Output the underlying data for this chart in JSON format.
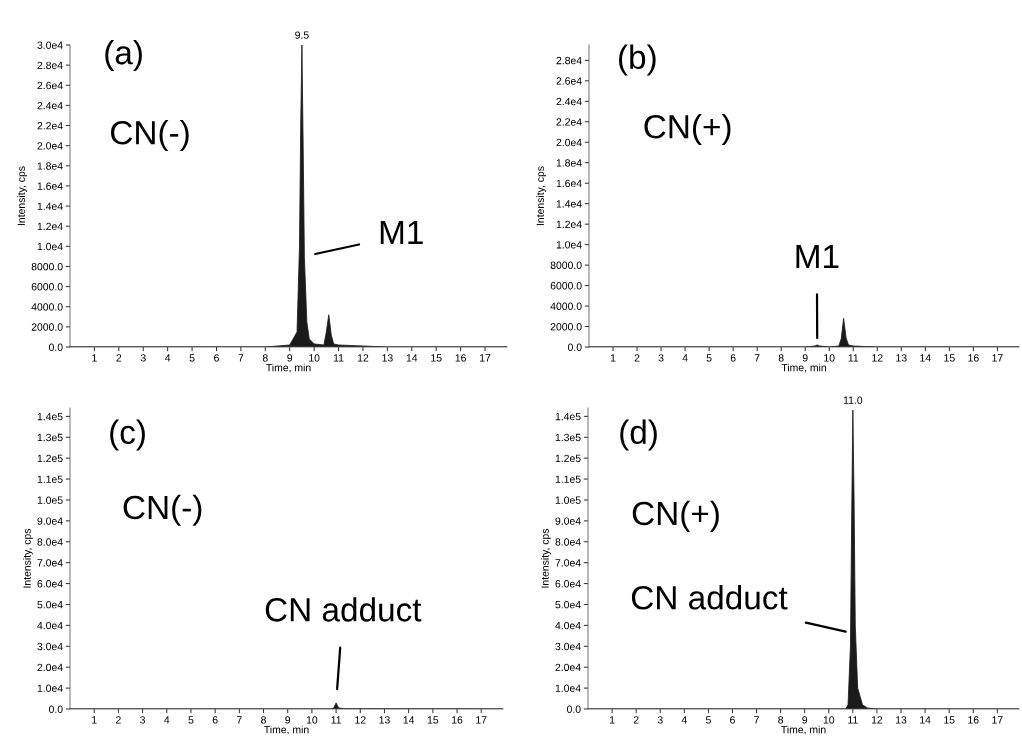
{
  "chart_data": [
    {
      "type": "area",
      "xlabel": "Time, min",
      "ylabel": "Intensity, cps",
      "x": [
        0,
        8.0,
        8.5,
        9.0,
        9.3,
        9.4,
        9.45,
        9.5,
        9.55,
        9.6,
        9.7,
        9.8,
        10.0,
        10.4,
        10.5,
        10.6,
        10.7,
        10.8,
        11.0,
        12.0,
        13.0,
        17.9
      ],
      "series": [
        {
          "color": "#1a1a1a",
          "values": [
            0,
            0,
            100,
            200,
            1500,
            10000,
            22000,
            30000,
            20000,
            9000,
            2500,
            800,
            300,
            200,
            1500,
            3200,
            1200,
            300,
            200,
            100,
            0,
            0
          ]
        }
      ],
      "xlim": [
        0,
        17.9
      ],
      "xticks": [
        1,
        2,
        3,
        4,
        5,
        6,
        7,
        8,
        9,
        10,
        11,
        12,
        13,
        14,
        15,
        16,
        17
      ],
      "ylim": [
        0,
        30000
      ],
      "yticks": [
        {
          "value": 0,
          "label": "0.0"
        },
        {
          "value": 2000,
          "label": "2000.0"
        },
        {
          "value": 4000,
          "label": "4000.0"
        },
        {
          "value": 6000,
          "label": "6000.0"
        },
        {
          "value": 8000,
          "label": "8000.0"
        },
        {
          "value": 10000,
          "label": "1.0e4"
        },
        {
          "value": 12000,
          "label": "1.2e4"
        },
        {
          "value": 14000,
          "label": "1.4e4"
        },
        {
          "value": 16000,
          "label": "1.6e4"
        },
        {
          "value": 18000,
          "label": "1.8e4"
        },
        {
          "value": 20000,
          "label": "2.0e4"
        },
        {
          "value": 22000,
          "label": "2.2e4"
        },
        {
          "value": 24000,
          "label": "2.4e4"
        },
        {
          "value": 26000,
          "label": "2.6e4"
        },
        {
          "value": 28000,
          "label": "2.8e4"
        },
        {
          "value": 30000,
          "label": "3.0e4"
        }
      ],
      "annotations": [
        "(a)",
        "CN(-)",
        {
          "text": "M1",
          "x": 9.6,
          "y": 9000
        },
        {
          "text": "9.5",
          "x": 9.5,
          "y": 30000
        }
      ]
    },
    {
      "type": "area",
      "xlabel": "Time, min",
      "ylabel": "Intensity, cps",
      "x": [
        0,
        8.0,
        9.0,
        9.4,
        9.5,
        9.6,
        10.0,
        10.4,
        10.5,
        10.6,
        10.7,
        10.8,
        11.0,
        12.0,
        13.0,
        17.9
      ],
      "series": [
        {
          "color": "#1a1a1a",
          "values": [
            0,
            0,
            0,
            100,
            200,
            100,
            0,
            100,
            800,
            2800,
            900,
            200,
            100,
            0,
            0,
            0
          ]
        }
      ],
      "xlim": [
        0,
        17.9
      ],
      "xticks": [
        1,
        2,
        3,
        4,
        5,
        6,
        7,
        8,
        9,
        10,
        11,
        12,
        13,
        14,
        15,
        16,
        17
      ],
      "ylim": [
        0,
        29500
      ],
      "yticks": [
        {
          "value": 0,
          "label": "0.0"
        },
        {
          "value": 2000,
          "label": "2000.0"
        },
        {
          "value": 4000,
          "label": "4000.0"
        },
        {
          "value": 6000,
          "label": "6000.0"
        },
        {
          "value": 8000,
          "label": "8000.0"
        },
        {
          "value": 10000,
          "label": "1.0e4"
        },
        {
          "value": 12000,
          "label": "1.2e4"
        },
        {
          "value": 14000,
          "label": "1.4e4"
        },
        {
          "value": 16000,
          "label": "1.6e4"
        },
        {
          "value": 18000,
          "label": "1.8e4"
        },
        {
          "value": 20000,
          "label": "2.0e4"
        },
        {
          "value": 22000,
          "label": "2.2e4"
        },
        {
          "value": 24000,
          "label": "2.4e4"
        },
        {
          "value": 26000,
          "label": "2.6e4"
        },
        {
          "value": 28000,
          "label": "2.8e4"
        }
      ],
      "annotations": [
        "(b)",
        "CN(+)",
        {
          "text": "M1",
          "x": 9.5,
          "y": 200
        }
      ]
    },
    {
      "type": "area",
      "xlabel": "Time, min",
      "ylabel": "Intensity, cps",
      "x": [
        0,
        10.8,
        10.9,
        11.0,
        11.1,
        11.3,
        17.9
      ],
      "series": [
        {
          "color": "#1a1a1a",
          "values": [
            0,
            0,
            500,
            2900,
            600,
            100,
            0
          ]
        }
      ],
      "xlim": [
        0,
        17.9
      ],
      "xticks": [
        1,
        2,
        3,
        4,
        5,
        6,
        7,
        8,
        9,
        10,
        11,
        12,
        13,
        14,
        15,
        16,
        17
      ],
      "ylim": [
        0,
        144000
      ],
      "yticks": [
        {
          "value": 0,
          "label": "0.0"
        },
        {
          "value": 10000,
          "label": "1.0e4"
        },
        {
          "value": 20000,
          "label": "2.0e4"
        },
        {
          "value": 30000,
          "label": "3.0e4"
        },
        {
          "value": 40000,
          "label": "4.0e4"
        },
        {
          "value": 50000,
          "label": "5.0e4"
        },
        {
          "value": 60000,
          "label": "6.0e4"
        },
        {
          "value": 70000,
          "label": "7.0e4"
        },
        {
          "value": 80000,
          "label": "8.0e4"
        },
        {
          "value": 90000,
          "label": "9.0e4"
        },
        {
          "value": 100000,
          "label": "1.0e5"
        },
        {
          "value": 110000,
          "label": "1.1e5"
        },
        {
          "value": 120000,
          "label": "1.2e5"
        },
        {
          "value": 130000,
          "label": "1.3e5"
        },
        {
          "value": 140000,
          "label": "1.4e5"
        }
      ],
      "annotations": [
        "(c)",
        "CN(-)",
        {
          "text": "CN adduct",
          "x": 11.0,
          "y": 2900
        }
      ]
    },
    {
      "type": "area",
      "xlabel": "Time, min",
      "ylabel": "Intensity, cps",
      "x": [
        0,
        10.7,
        10.8,
        10.9,
        10.95,
        11.0,
        11.05,
        11.1,
        11.2,
        11.4,
        11.6,
        12.0,
        17.9
      ],
      "series": [
        {
          "color": "#1a1a1a",
          "values": [
            0,
            0,
            2000,
            30000,
            90000,
            143000,
            100000,
            40000,
            10000,
            2000,
            500,
            0,
            0
          ]
        }
      ],
      "xlim": [
        0,
        17.9
      ],
      "xticks": [
        1,
        2,
        3,
        4,
        5,
        6,
        7,
        8,
        9,
        10,
        11,
        12,
        13,
        14,
        15,
        16,
        17
      ],
      "ylim": [
        0,
        144000
      ],
      "yticks": [
        {
          "value": 0,
          "label": "0.0"
        },
        {
          "value": 10000,
          "label": "1.0e4"
        },
        {
          "value": 20000,
          "label": "2.0e4"
        },
        {
          "value": 30000,
          "label": "3.0e4"
        },
        {
          "value": 40000,
          "label": "4.0e4"
        },
        {
          "value": 50000,
          "label": "5.0e4"
        },
        {
          "value": 60000,
          "label": "6.0e4"
        },
        {
          "value": 70000,
          "label": "7.0e4"
        },
        {
          "value": 80000,
          "label": "8.0e4"
        },
        {
          "value": 90000,
          "label": "9.0e4"
        },
        {
          "value": 100000,
          "label": "1.0e5"
        },
        {
          "value": 110000,
          "label": "1.1e5"
        },
        {
          "value": 120000,
          "label": "1.2e5"
        },
        {
          "value": 130000,
          "label": "1.3e5"
        },
        {
          "value": 140000,
          "label": "1.4e5"
        }
      ],
      "annotations": [
        "(d)",
        "CN(+)",
        {
          "text": "CN adduct",
          "x": 10.7,
          "y": 37000
        },
        {
          "text": "11.0",
          "x": 11.0,
          "y": 143000
        }
      ]
    }
  ]
}
